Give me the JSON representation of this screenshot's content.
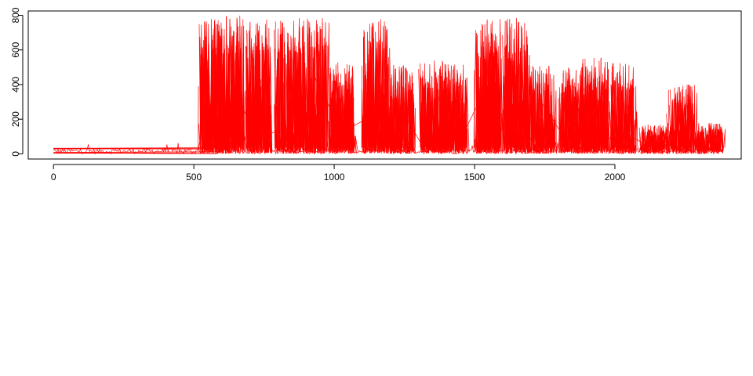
{
  "chart_data": {
    "type": "line",
    "title": "",
    "xlabel": "",
    "ylabel": "",
    "xlim": [
      -90,
      2450
    ],
    "ylim": [
      -30,
      825
    ],
    "x_ticks": [
      0,
      500,
      1000,
      1500,
      2000
    ],
    "x_tick_labels": [
      "0",
      "500",
      "1000",
      "1500",
      "2000"
    ],
    "y_ticks": [
      0,
      200,
      400,
      600,
      800
    ],
    "y_tick_labels": [
      "0",
      "200",
      "400",
      "600",
      "800"
    ],
    "grid": false,
    "legend": "none",
    "line_color": "#ff0000",
    "x_range": [
      0,
      2350
    ],
    "baseline_band": {
      "x": [
        0,
        600
      ],
      "y": [
        0,
        45
      ]
    },
    "activity_bursts": [
      {
        "x_center": 560,
        "peak": 780
      },
      {
        "x_center": 620,
        "peak": 800
      },
      {
        "x_center": 720,
        "peak": 780
      },
      {
        "x_center": 830,
        "peak": 790
      },
      {
        "x_center": 920,
        "peak": 790
      },
      {
        "x_center": 1020,
        "peak": 540
      },
      {
        "x_center": 1140,
        "peak": 780
      },
      {
        "x_center": 1230,
        "peak": 520
      },
      {
        "x_center": 1340,
        "peak": 540
      },
      {
        "x_center": 1420,
        "peak": 520
      },
      {
        "x_center": 1540,
        "peak": 780
      },
      {
        "x_center": 1640,
        "peak": 790
      },
      {
        "x_center": 1730,
        "peak": 510
      },
      {
        "x_center": 1840,
        "peak": 500
      },
      {
        "x_center": 1920,
        "peak": 560
      },
      {
        "x_center": 2020,
        "peak": 530
      },
      {
        "x_center": 2130,
        "peak": 170
      },
      {
        "x_center": 2230,
        "peak": 400
      },
      {
        "x_center": 2330,
        "peak": 180
      }
    ]
  }
}
